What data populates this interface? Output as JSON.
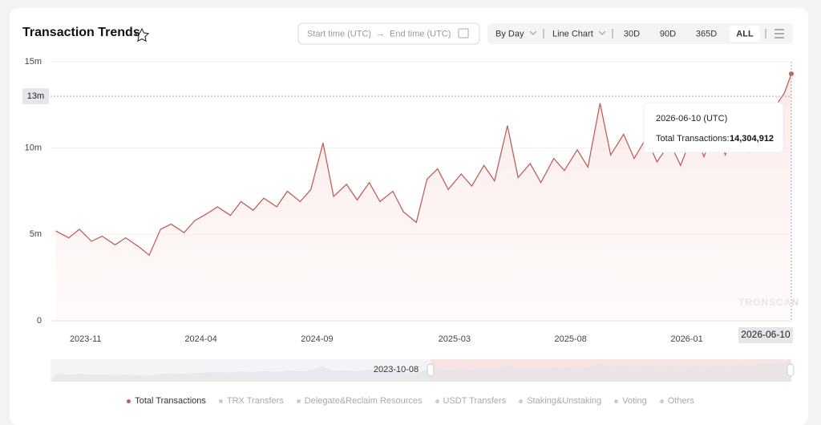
{
  "header": {
    "title": "Transaction Trends",
    "start_placeholder": "Start time (UTC)",
    "end_placeholder": "End time (UTC)",
    "granularity": "By Day",
    "chart_kind": "Line Chart",
    "ranges": [
      "30D",
      "90D",
      "365D",
      "ALL"
    ]
  },
  "chart_data": {
    "type": "line",
    "x": [
      "2023-10-15",
      "2023-11-01",
      "2023-11-15",
      "2023-12-01",
      "2023-12-15",
      "2024-01-01",
      "2024-01-15",
      "2024-02-01",
      "2024-02-15",
      "2024-03-01",
      "2024-03-15",
      "2024-04-01",
      "2024-04-15",
      "2024-05-01",
      "2024-05-15",
      "2024-06-01",
      "2024-06-15",
      "2024-07-01",
      "2024-07-15",
      "2024-08-01",
      "2024-08-15",
      "2024-09-01",
      "2024-09-15",
      "2024-10-01",
      "2024-10-15",
      "2024-11-01",
      "2024-11-15",
      "2024-12-01",
      "2024-12-15",
      "2025-01-01",
      "2025-01-15",
      "2025-02-01",
      "2025-02-15",
      "2025-03-01",
      "2025-03-15",
      "2025-04-01",
      "2025-04-15",
      "2025-05-01",
      "2025-05-15",
      "2025-06-01",
      "2025-06-15",
      "2025-07-01",
      "2025-07-15",
      "2025-08-01",
      "2025-08-15",
      "2025-09-01",
      "2025-09-15",
      "2025-10-01",
      "2025-10-15",
      "2025-11-01",
      "2025-11-15",
      "2025-12-01",
      "2025-12-15",
      "2026-01-01",
      "2026-01-15",
      "2026-02-01",
      "2026-02-15",
      "2026-03-01",
      "2026-03-15",
      "2026-04-01",
      "2026-04-15",
      "2026-05-01",
      "2026-05-15",
      "2026-06-01",
      "2026-06-10"
    ],
    "series": [
      {
        "name": "Total Transactions",
        "color": "#c0605a",
        "values": [
          5200000,
          4800000,
          5300000,
          4600000,
          4900000,
          4400000,
          4800000,
          4300000,
          3800000,
          5300000,
          5600000,
          5100000,
          5800000,
          6200000,
          6600000,
          6100000,
          6900000,
          6400000,
          7100000,
          6600000,
          7500000,
          6900000,
          7600000,
          10300000,
          7200000,
          7900000,
          7000000,
          8000000,
          6900000,
          7500000,
          6300000,
          5700000,
          8200000,
          8800000,
          7600000,
          8500000,
          7800000,
          9000000,
          8100000,
          11300000,
          8300000,
          9100000,
          8000000,
          9400000,
          8700000,
          9900000,
          8900000,
          12600000,
          9600000,
          10800000,
          9400000,
          10600000,
          9200000,
          10300000,
          9000000,
          10900000,
          9500000,
          11200000,
          9600000,
          11500000,
          9800000,
          12500000,
          12100000,
          13200000,
          14304912
        ]
      }
    ],
    "other_legend": [
      "TRX Transfers",
      "Delegate&Reclaim Resources",
      "USDT Transfers",
      "Staking&Unstaking",
      "Voting",
      "Others"
    ],
    "xlim": [
      "2023-10-08",
      "2026-06-10"
    ],
    "xticks": [
      {
        "value": "2023-11-01",
        "label": "2023-11"
      },
      {
        "value": "2024-04-01",
        "label": "2024-04"
      },
      {
        "value": "2024-09-01",
        "label": "2024-09"
      },
      {
        "value": "2025-03-01",
        "label": "2025-03"
      },
      {
        "value": "2025-08-01",
        "label": "2025-08"
      },
      {
        "value": "2026-01-01",
        "label": "2026-01"
      }
    ],
    "ylim": [
      0,
      15000000
    ],
    "yticks": [
      0,
      {
        "value": 5000000,
        "label": "5m"
      },
      {
        "value": 10000000,
        "label": "10m"
      },
      {
        "value": 15000000,
        "label": "15m"
      }
    ],
    "grid": true,
    "pointer": {
      "y": {
        "value": 13000000,
        "label": "13m"
      },
      "x": "2026-06-10"
    },
    "tooltip": {
      "date": "2026-06-10 (UTC)",
      "label": "Total Transactions:",
      "value_label": "14,304,912"
    },
    "slider_start": "2023-10-08",
    "watermark": "TRONSCAN"
  }
}
